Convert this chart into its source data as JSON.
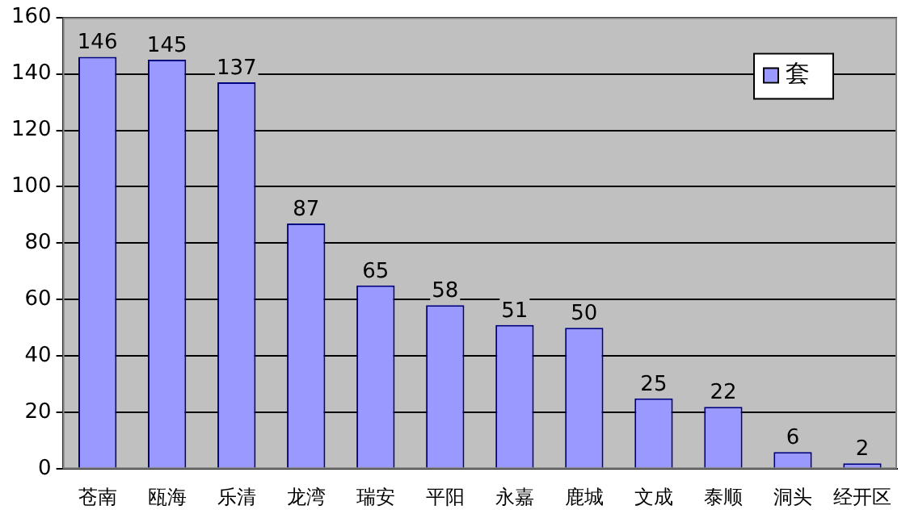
{
  "chart_data": {
    "type": "bar",
    "categories": [
      "苍南",
      "瓯海",
      "乐清",
      "龙湾",
      "瑞安",
      "平阳",
      "永嘉",
      "鹿城",
      "文成",
      "泰顺",
      "洞头",
      "经开区"
    ],
    "series": [
      {
        "name": "套",
        "color": "#9999ff",
        "values": [
          146,
          145,
          137,
          87,
          65,
          58,
          51,
          50,
          25,
          22,
          6,
          2
        ]
      }
    ],
    "ylim": [
      0,
      160
    ],
    "yticks": [
      0,
      20,
      40,
      60,
      80,
      100,
      120,
      140,
      160
    ],
    "grid": "y",
    "legend": "top right",
    "data_labels": true
  }
}
